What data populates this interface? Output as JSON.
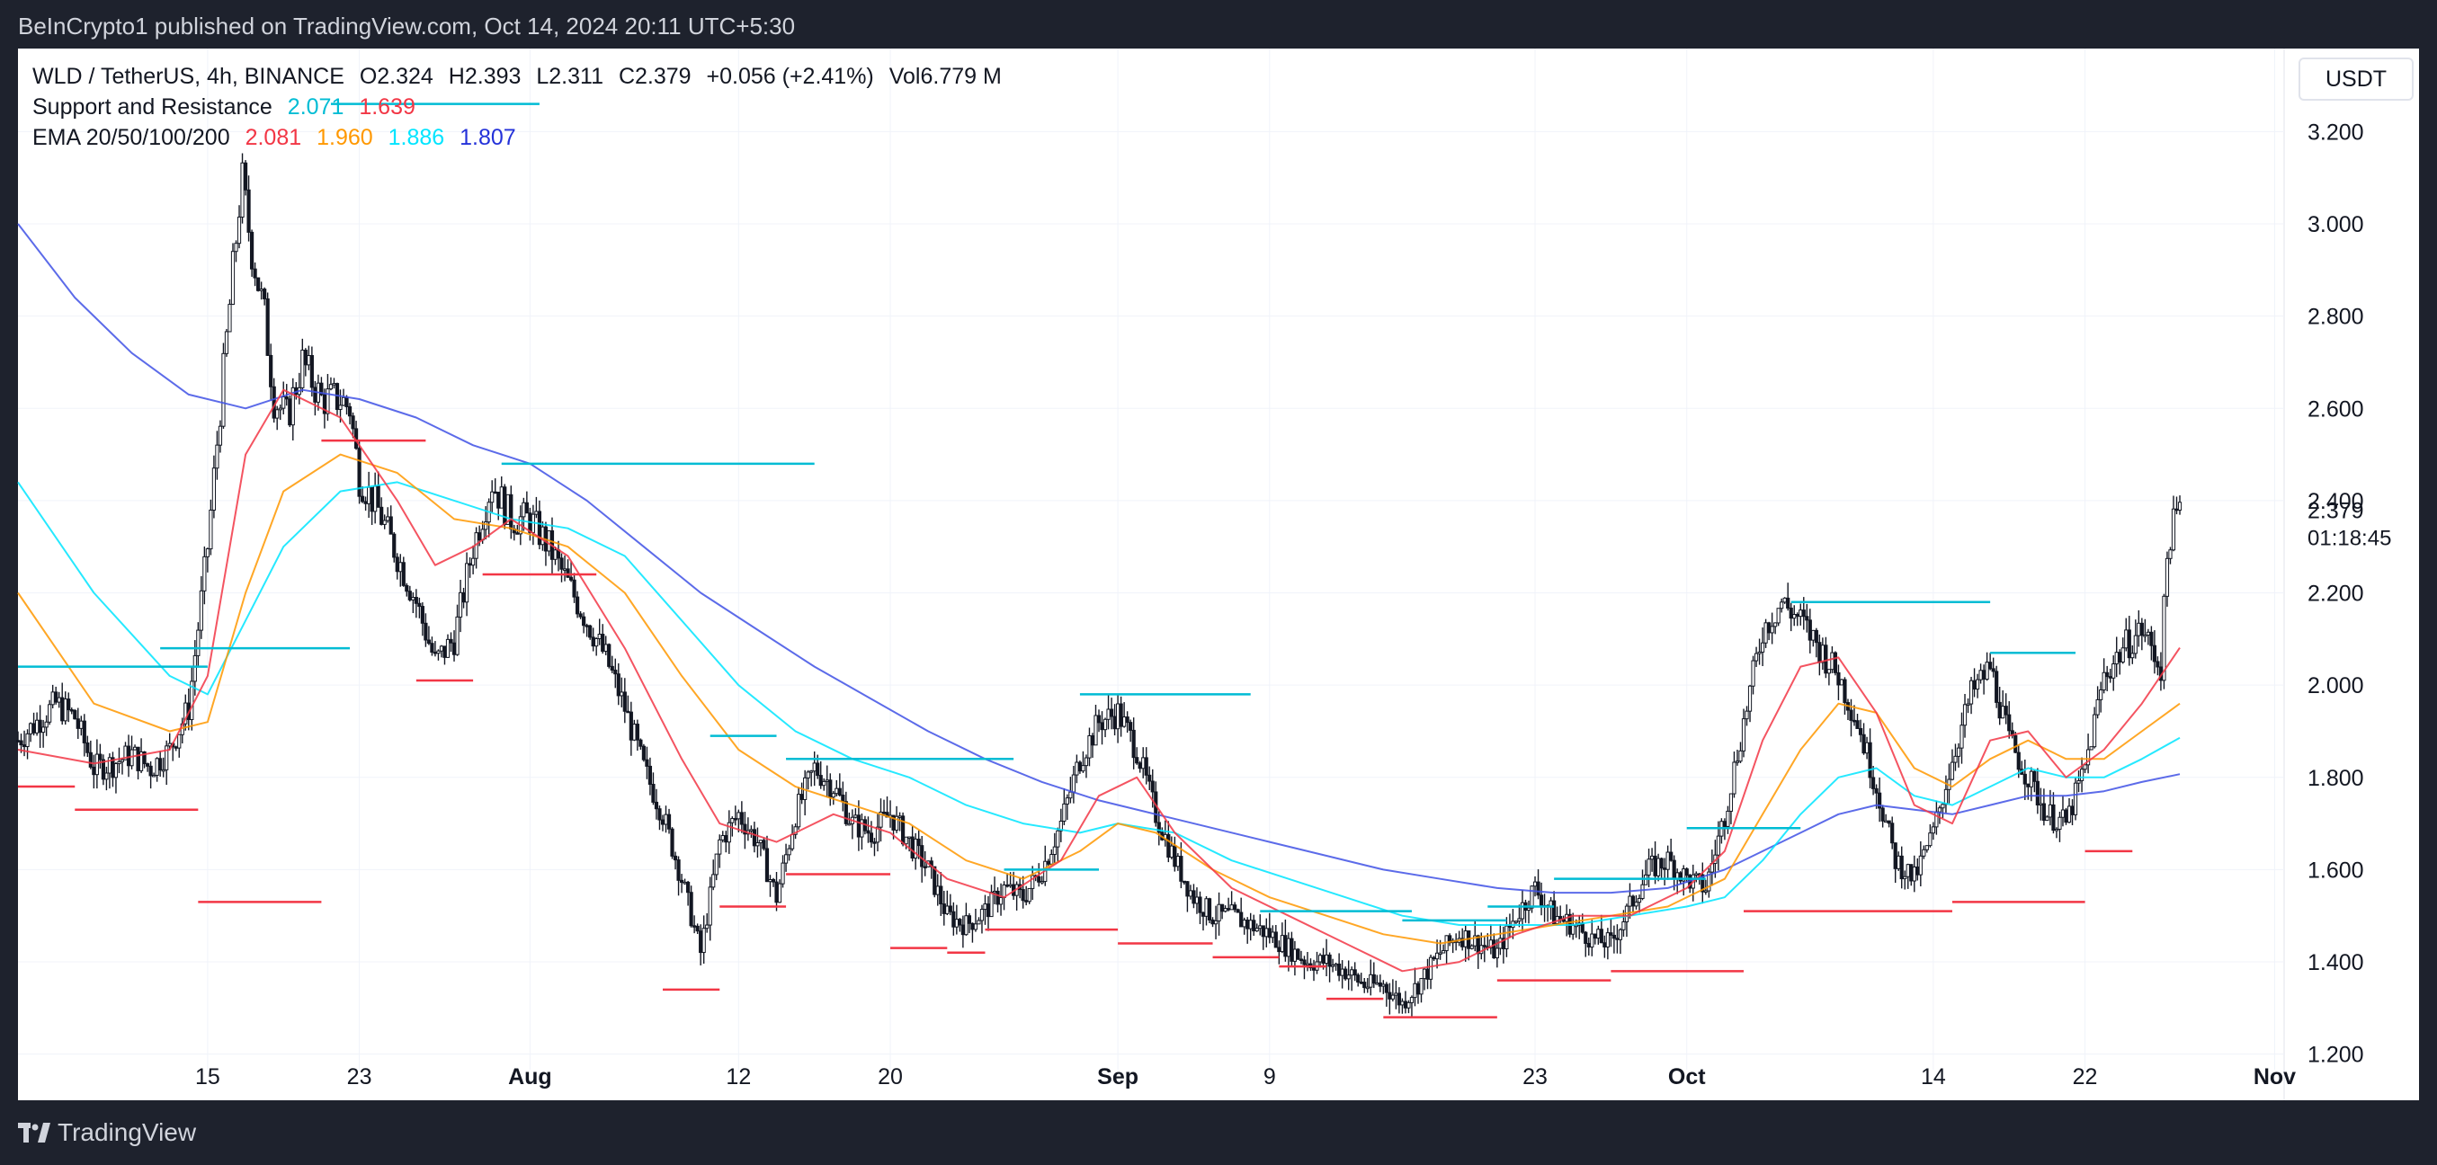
{
  "header": {
    "published": "BeInCrypto1 published on TradingView.com, Oct 14, 2024 20:11 UTC+5:30"
  },
  "footer": {
    "brand": "TradingView"
  },
  "legend": {
    "symbol": "WLD / TetherUS, 4h, BINANCE",
    "open": "O2.324",
    "high": "H2.393",
    "low": "L2.311",
    "close": "C2.379",
    "change": "+0.056 (+2.41%)",
    "volume": "Vol6.779 M",
    "sr_name": "Support and Resistance",
    "sr_resistance": "2.071",
    "sr_support": "1.639",
    "ema_name": "EMA 20/50/100/200",
    "ema20": "2.081",
    "ema50": "1.960",
    "ema100": "1.886",
    "ema200": "1.807"
  },
  "currency_button": "USDT",
  "price_label": {
    "value": "2.379",
    "countdown": "01:18:45"
  },
  "colors": {
    "support": "#f23645",
    "resistance": "#00bcd4",
    "ema20": "#f23645",
    "ema50": "#ff9800",
    "ema100": "#00e5ff",
    "ema200": "#3f51e5",
    "candle": "#131722"
  },
  "chart_data": {
    "type": "candlestick",
    "x_ticks": [
      "15",
      "23",
      "Aug",
      "12",
      "20",
      "Sep",
      "9",
      "23",
      "Oct",
      "14",
      "22",
      "Nov"
    ],
    "x_tick_days": [
      15,
      23,
      32,
      43,
      51,
      63,
      71,
      85,
      93,
      106,
      114,
      124
    ],
    "y_ticks": [
      "1.200",
      "1.400",
      "1.600",
      "1.800",
      "2.000",
      "2.200",
      "2.400",
      "2.600",
      "2.800",
      "3.000",
      "3.200"
    ],
    "ylim": [
      1.1,
      3.38
    ],
    "xlim": [
      5,
      124.5
    ],
    "close_path": [
      [
        5,
        1.88
      ],
      [
        6,
        1.92
      ],
      [
        7,
        1.96
      ],
      [
        8,
        1.93
      ],
      [
        9,
        1.82
      ],
      [
        10,
        1.83
      ],
      [
        11,
        1.85
      ],
      [
        12,
        1.82
      ],
      [
        13,
        1.86
      ],
      [
        14,
        1.95
      ],
      [
        15,
        2.3
      ],
      [
        16,
        2.75
      ],
      [
        16.8,
        3.1
      ],
      [
        17.3,
        2.95
      ],
      [
        18,
        2.8
      ],
      [
        18.5,
        2.62
      ],
      [
        19.2,
        2.58
      ],
      [
        20,
        2.7
      ],
      [
        21,
        2.62
      ],
      [
        22,
        2.62
      ],
      [
        22.5,
        2.6
      ],
      [
        23,
        2.45
      ],
      [
        24,
        2.38
      ],
      [
        25,
        2.28
      ],
      [
        26,
        2.18
      ],
      [
        27,
        2.05
      ],
      [
        28,
        2.1
      ],
      [
        29,
        2.3
      ],
      [
        30,
        2.44
      ],
      [
        31,
        2.36
      ],
      [
        32,
        2.36
      ],
      [
        33,
        2.3
      ],
      [
        34,
        2.22
      ],
      [
        35,
        2.14
      ],
      [
        36,
        2.06
      ],
      [
        37,
        1.95
      ],
      [
        38,
        1.82
      ],
      [
        39,
        1.72
      ],
      [
        40,
        1.58
      ],
      [
        41,
        1.42
      ],
      [
        42,
        1.66
      ],
      [
        43,
        1.72
      ],
      [
        44,
        1.66
      ],
      [
        45,
        1.54
      ],
      [
        46,
        1.72
      ],
      [
        47,
        1.82
      ],
      [
        48,
        1.78
      ],
      [
        49,
        1.7
      ],
      [
        50,
        1.68
      ],
      [
        51,
        1.72
      ],
      [
        52,
        1.66
      ],
      [
        53,
        1.6
      ],
      [
        54,
        1.5
      ],
      [
        55,
        1.48
      ],
      [
        56,
        1.51
      ],
      [
        57,
        1.56
      ],
      [
        58,
        1.54
      ],
      [
        59,
        1.6
      ],
      [
        60,
        1.7
      ],
      [
        61,
        1.84
      ],
      [
        62,
        1.92
      ],
      [
        63,
        1.94
      ],
      [
        64,
        1.86
      ],
      [
        65,
        1.72
      ],
      [
        66,
        1.62
      ],
      [
        67,
        1.54
      ],
      [
        68,
        1.5
      ],
      [
        69,
        1.5
      ],
      [
        70,
        1.48
      ],
      [
        71,
        1.46
      ],
      [
        72,
        1.43
      ],
      [
        73,
        1.4
      ],
      [
        74,
        1.4
      ],
      [
        75,
        1.38
      ],
      [
        76,
        1.35
      ],
      [
        77,
        1.35
      ],
      [
        78,
        1.31
      ],
      [
        79,
        1.36
      ],
      [
        80,
        1.42
      ],
      [
        81,
        1.46
      ],
      [
        82,
        1.44
      ],
      [
        83,
        1.42
      ],
      [
        84,
        1.5
      ],
      [
        85,
        1.56
      ],
      [
        86,
        1.5
      ],
      [
        87,
        1.48
      ],
      [
        88,
        1.45
      ],
      [
        89,
        1.44
      ],
      [
        90,
        1.52
      ],
      [
        91,
        1.6
      ],
      [
        92,
        1.62
      ],
      [
        93,
        1.58
      ],
      [
        94,
        1.56
      ],
      [
        95,
        1.72
      ],
      [
        96,
        1.92
      ],
      [
        97,
        2.12
      ],
      [
        98,
        2.18
      ],
      [
        99,
        2.14
      ],
      [
        100,
        2.08
      ],
      [
        101,
        2.02
      ],
      [
        102,
        1.92
      ],
      [
        103,
        1.78
      ],
      [
        104,
        1.62
      ],
      [
        105,
        1.58
      ],
      [
        106,
        1.68
      ],
      [
        107,
        1.84
      ],
      [
        108,
        1.98
      ],
      [
        109,
        2.04
      ],
      [
        110,
        1.88
      ],
      [
        111,
        1.8
      ],
      [
        112,
        1.72
      ],
      [
        113,
        1.7
      ],
      [
        114,
        1.82
      ],
      [
        115,
        2.02
      ],
      [
        116,
        2.08
      ],
      [
        117,
        2.12
      ],
      [
        118,
        2.04
      ],
      [
        118.4,
        2.32
      ],
      [
        119,
        2.379
      ]
    ],
    "ema20_path": [
      [
        5,
        1.86
      ],
      [
        9,
        1.83
      ],
      [
        13,
        1.86
      ],
      [
        15,
        2.02
      ],
      [
        17,
        2.5
      ],
      [
        19,
        2.64
      ],
      [
        22,
        2.58
      ],
      [
        25,
        2.4
      ],
      [
        27,
        2.26
      ],
      [
        29,
        2.3
      ],
      [
        31,
        2.36
      ],
      [
        34,
        2.28
      ],
      [
        37,
        2.08
      ],
      [
        40,
        1.84
      ],
      [
        42,
        1.7
      ],
      [
        45,
        1.66
      ],
      [
        48,
        1.72
      ],
      [
        51,
        1.68
      ],
      [
        54,
        1.58
      ],
      [
        57,
        1.54
      ],
      [
        60,
        1.62
      ],
      [
        62,
        1.76
      ],
      [
        64,
        1.8
      ],
      [
        66,
        1.68
      ],
      [
        69,
        1.56
      ],
      [
        72,
        1.5
      ],
      [
        75,
        1.44
      ],
      [
        78,
        1.38
      ],
      [
        81,
        1.4
      ],
      [
        84,
        1.46
      ],
      [
        87,
        1.5
      ],
      [
        90,
        1.5
      ],
      [
        93,
        1.56
      ],
      [
        95,
        1.64
      ],
      [
        97,
        1.88
      ],
      [
        99,
        2.04
      ],
      [
        101,
        2.06
      ],
      [
        103,
        1.94
      ],
      [
        105,
        1.74
      ],
      [
        107,
        1.7
      ],
      [
        109,
        1.88
      ],
      [
        111,
        1.9
      ],
      [
        113,
        1.8
      ],
      [
        115,
        1.86
      ],
      [
        117,
        1.96
      ],
      [
        119,
        2.081
      ]
    ],
    "ema50_path": [
      [
        5,
        2.2
      ],
      [
        9,
        1.96
      ],
      [
        13,
        1.9
      ],
      [
        15,
        1.92
      ],
      [
        17,
        2.2
      ],
      [
        19,
        2.42
      ],
      [
        22,
        2.5
      ],
      [
        25,
        2.46
      ],
      [
        28,
        2.36
      ],
      [
        31,
        2.34
      ],
      [
        34,
        2.3
      ],
      [
        37,
        2.2
      ],
      [
        40,
        2.02
      ],
      [
        43,
        1.86
      ],
      [
        46,
        1.78
      ],
      [
        49,
        1.74
      ],
      [
        52,
        1.7
      ],
      [
        55,
        1.62
      ],
      [
        58,
        1.58
      ],
      [
        61,
        1.64
      ],
      [
        63,
        1.7
      ],
      [
        65,
        1.68
      ],
      [
        68,
        1.6
      ],
      [
        71,
        1.54
      ],
      [
        74,
        1.5
      ],
      [
        77,
        1.46
      ],
      [
        80,
        1.44
      ],
      [
        83,
        1.46
      ],
      [
        86,
        1.48
      ],
      [
        89,
        1.5
      ],
      [
        92,
        1.52
      ],
      [
        95,
        1.58
      ],
      [
        97,
        1.72
      ],
      [
        99,
        1.86
      ],
      [
        101,
        1.96
      ],
      [
        103,
        1.94
      ],
      [
        105,
        1.82
      ],
      [
        107,
        1.78
      ],
      [
        109,
        1.84
      ],
      [
        111,
        1.88
      ],
      [
        113,
        1.84
      ],
      [
        115,
        1.84
      ],
      [
        117,
        1.9
      ],
      [
        119,
        1.96
      ]
    ],
    "ema100_path": [
      [
        5,
        2.44
      ],
      [
        9,
        2.2
      ],
      [
        13,
        2.02
      ],
      [
        15,
        1.98
      ],
      [
        17,
        2.14
      ],
      [
        19,
        2.3
      ],
      [
        22,
        2.42
      ],
      [
        25,
        2.44
      ],
      [
        28,
        2.4
      ],
      [
        31,
        2.36
      ],
      [
        34,
        2.34
      ],
      [
        37,
        2.28
      ],
      [
        40,
        2.14
      ],
      [
        43,
        2.0
      ],
      [
        46,
        1.9
      ],
      [
        49,
        1.84
      ],
      [
        52,
        1.8
      ],
      [
        55,
        1.74
      ],
      [
        58,
        1.7
      ],
      [
        61,
        1.68
      ],
      [
        63,
        1.7
      ],
      [
        66,
        1.68
      ],
      [
        69,
        1.62
      ],
      [
        72,
        1.58
      ],
      [
        75,
        1.54
      ],
      [
        78,
        1.5
      ],
      [
        81,
        1.48
      ],
      [
        84,
        1.48
      ],
      [
        87,
        1.48
      ],
      [
        90,
        1.5
      ],
      [
        93,
        1.52
      ],
      [
        95,
        1.54
      ],
      [
        97,
        1.62
      ],
      [
        99,
        1.72
      ],
      [
        101,
        1.8
      ],
      [
        103,
        1.82
      ],
      [
        105,
        1.76
      ],
      [
        107,
        1.74
      ],
      [
        109,
        1.78
      ],
      [
        111,
        1.82
      ],
      [
        113,
        1.8
      ],
      [
        115,
        1.8
      ],
      [
        117,
        1.84
      ],
      [
        119,
        1.886
      ]
    ],
    "ema200_path": [
      [
        5,
        3.0
      ],
      [
        8,
        2.84
      ],
      [
        11,
        2.72
      ],
      [
        14,
        2.63
      ],
      [
        17,
        2.6
      ],
      [
        20,
        2.64
      ],
      [
        23,
        2.62
      ],
      [
        26,
        2.58
      ],
      [
        29,
        2.52
      ],
      [
        32,
        2.48
      ],
      [
        35,
        2.4
      ],
      [
        38,
        2.3
      ],
      [
        41,
        2.2
      ],
      [
        44,
        2.12
      ],
      [
        47,
        2.04
      ],
      [
        50,
        1.97
      ],
      [
        53,
        1.9
      ],
      [
        56,
        1.84
      ],
      [
        59,
        1.79
      ],
      [
        62,
        1.75
      ],
      [
        65,
        1.72
      ],
      [
        68,
        1.69
      ],
      [
        71,
        1.66
      ],
      [
        74,
        1.63
      ],
      [
        77,
        1.6
      ],
      [
        80,
        1.58
      ],
      [
        83,
        1.56
      ],
      [
        86,
        1.55
      ],
      [
        89,
        1.55
      ],
      [
        92,
        1.56
      ],
      [
        95,
        1.6
      ],
      [
        97,
        1.64
      ],
      [
        99,
        1.68
      ],
      [
        101,
        1.72
      ],
      [
        103,
        1.74
      ],
      [
        105,
        1.73
      ],
      [
        107,
        1.72
      ],
      [
        109,
        1.74
      ],
      [
        111,
        1.76
      ],
      [
        113,
        1.76
      ],
      [
        115,
        1.77
      ],
      [
        117,
        1.79
      ],
      [
        119,
        1.807
      ]
    ],
    "resistance_levels": [
      [
        5,
        15,
        2.04
      ],
      [
        12.5,
        22.5,
        2.08
      ],
      [
        21.5,
        32.5,
        3.26
      ],
      [
        30.5,
        47,
        2.48
      ],
      [
        41.5,
        45,
        1.89
      ],
      [
        45.5,
        57.5,
        1.84
      ],
      [
        57,
        62,
        1.6
      ],
      [
        61,
        70,
        1.98
      ],
      [
        70.5,
        78.5,
        1.51
      ],
      [
        78,
        83.5,
        1.49
      ],
      [
        82.5,
        86,
        1.52
      ],
      [
        86,
        94,
        1.58
      ],
      [
        93,
        99,
        1.69
      ],
      [
        98.5,
        109,
        2.18
      ],
      [
        109,
        113.5,
        2.07
      ]
    ],
    "support_levels": [
      [
        5,
        8,
        1.78
      ],
      [
        8,
        14.5,
        1.73
      ],
      [
        14.5,
        21,
        1.53
      ],
      [
        21,
        26.5,
        2.53
      ],
      [
        26,
        29,
        2.01
      ],
      [
        29.5,
        35.5,
        2.24
      ],
      [
        39,
        42,
        1.34
      ],
      [
        42,
        45.5,
        1.52
      ],
      [
        45.5,
        51,
        1.59
      ],
      [
        51,
        54,
        1.43
      ],
      [
        54,
        56,
        1.42
      ],
      [
        56,
        63,
        1.47
      ],
      [
        63,
        68,
        1.44
      ],
      [
        68,
        71.5,
        1.41
      ],
      [
        71.5,
        74,
        1.39
      ],
      [
        74,
        77,
        1.32
      ],
      [
        77,
        83,
        1.28
      ],
      [
        83,
        89,
        1.36
      ],
      [
        89,
        96,
        1.38
      ],
      [
        96,
        107,
        1.51
      ],
      [
        107,
        114,
        1.53
      ],
      [
        114,
        116.5,
        1.64
      ]
    ]
  }
}
